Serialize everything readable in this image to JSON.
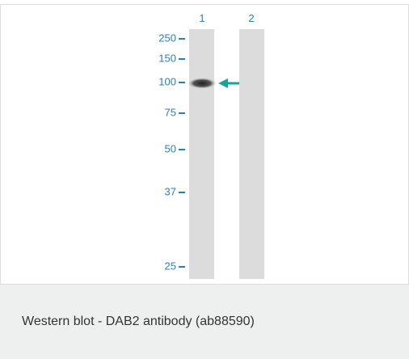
{
  "figure": {
    "lanes": [
      "1",
      "2"
    ],
    "markers": [
      "250",
      "150",
      "100",
      "75",
      "50",
      "37",
      "25"
    ]
  },
  "caption": "Western blot - DAB2 antibody (ab88590)"
}
